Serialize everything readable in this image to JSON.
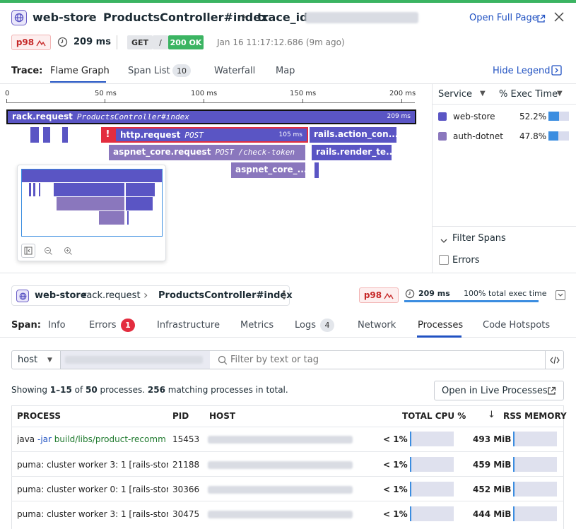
{
  "header": {
    "service": "web-store",
    "resource": "ProductsController#index",
    "trace_label": "trace_id",
    "open_full_page": "Open Full Page",
    "p98": "p98",
    "duration": "209 ms",
    "method": "GET",
    "path": "/",
    "status": "200 OK",
    "timestamp": "Jan 16 11:17:12.686 (9m ago)"
  },
  "trace_tabs": {
    "label": "Trace:",
    "items": [
      {
        "label": "Flame Graph",
        "active": true
      },
      {
        "label": "Span List",
        "count": "10"
      },
      {
        "label": "Waterfall"
      },
      {
        "label": "Map"
      }
    ],
    "hide_legend": "Hide Legend"
  },
  "axis": {
    "ticks": [
      "0",
      "50 ms",
      "100 ms",
      "150 ms",
      "200 ms"
    ]
  },
  "flame": {
    "spans": [
      {
        "name": "rack.request",
        "resource": "ProductsController#index",
        "duration": "209 ms"
      },
      {
        "name": "http.request",
        "resource": "POST",
        "duration": "105 ms",
        "error": "!"
      },
      {
        "name": "rails.action_con...",
        "resource": ""
      },
      {
        "name": "aspnet_core.request",
        "resource": "POST /check-token"
      },
      {
        "name": "rails.render_te...",
        "resource": ""
      },
      {
        "name": "aspnet_core_...",
        "resource": ""
      }
    ]
  },
  "legend": {
    "col_service": "Service",
    "col_exec": "% Exec Time",
    "rows": [
      {
        "service": "web-store",
        "pct": "52.2%",
        "fraction": 0.522,
        "color": "#5a55c4"
      },
      {
        "service": "auth-dotnet",
        "pct": "47.8%",
        "fraction": 0.478,
        "color": "#8a77bd"
      }
    ],
    "filter_spans": "Filter Spans",
    "errors_label": "Errors"
  },
  "span_header": {
    "service": "web-store",
    "operation": "rack.request",
    "resource": "ProductsController#index",
    "p98": "p98",
    "duration": "209 ms",
    "exec_time": "100% total exec time"
  },
  "span_tabs": {
    "label": "Span:",
    "items": [
      {
        "label": "Info"
      },
      {
        "label": "Errors",
        "count": "1"
      },
      {
        "label": "Infrastructure"
      },
      {
        "label": "Metrics"
      },
      {
        "label": "Logs",
        "count": "4"
      },
      {
        "label": "Network"
      },
      {
        "label": "Processes",
        "active": true
      },
      {
        "label": "Code Hotspots"
      }
    ]
  },
  "filter": {
    "host_select": "host",
    "search_placeholder": "Filter by text or tag"
  },
  "processes": {
    "summary_prefix": "Showing ",
    "summary_range": "1–15",
    "summary_of": " of ",
    "summary_total": "50",
    "summary_mid": " processes. ",
    "summary_matching": "256",
    "summary_end": " matching processes in total.",
    "open_live": "Open in Live Processes",
    "columns": [
      "PROCESS",
      "PID",
      "HOST",
      "TOTAL CPU %",
      "RSS MEMORY"
    ],
    "rows": [
      {
        "cmd": "java",
        "flag": "-jar",
        "arg": "build/libs/product-recomm",
        "pid": "15453",
        "cpu": "< 1%",
        "mem": "493 MiB"
      },
      {
        "cmd": "puma: cluster worker 3: 1 [rails-stor",
        "flag": "",
        "arg": "",
        "pid": "21188",
        "cpu": "< 1%",
        "mem": "459 MiB"
      },
      {
        "cmd": "puma: cluster worker 0: 1 [rails-stor",
        "flag": "",
        "arg": "",
        "pid": "30366",
        "cpu": "< 1%",
        "mem": "452 MiB"
      },
      {
        "cmd": "puma: cluster worker 3: 1 [rails-stor",
        "flag": "",
        "arg": "",
        "pid": "30475",
        "cpu": "< 1%",
        "mem": "444 MiB"
      }
    ]
  }
}
